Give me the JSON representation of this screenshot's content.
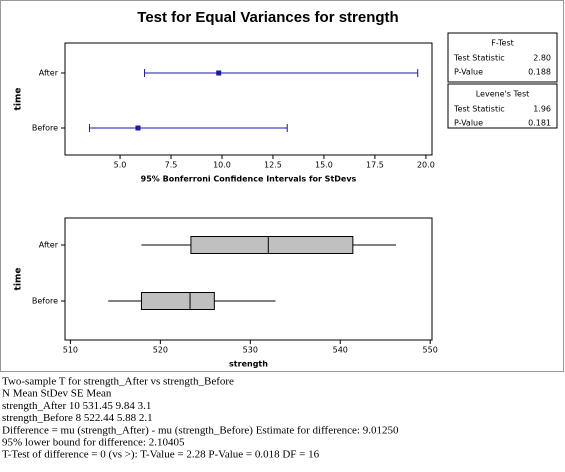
{
  "title": "Test for Equal Variances for strength",
  "chart_data": [
    {
      "type": "interval",
      "categories": [
        "After",
        "Before"
      ],
      "lower": [
        6.2,
        3.5
      ],
      "values": [
        9.84,
        5.88
      ],
      "upper": [
        19.6,
        13.2
      ],
      "color": "#1a1aa6",
      "xlim": [
        2.3,
        20.3
      ],
      "xticks": [
        {
          "value": 5,
          "label": "5.0"
        },
        {
          "value": 7.5,
          "label": "7.5"
        },
        {
          "value": 10,
          "label": "10.0"
        },
        {
          "value": 12.5,
          "label": "12.5"
        },
        {
          "value": 15,
          "label": "15.0"
        },
        {
          "value": 17.5,
          "label": "17.5"
        },
        {
          "value": 20,
          "label": "20.0"
        }
      ],
      "xlabel": "95% Bonferroni Confidence Intervals for StDevs",
      "ylabel": "time"
    },
    {
      "type": "box",
      "categories": [
        "After",
        "Before"
      ],
      "whisker_low": [
        517.9,
        514.2
      ],
      "q1": [
        523.4,
        517.9
      ],
      "median": [
        532.0,
        523.3
      ],
      "q3": [
        541.4,
        526.0
      ],
      "whisker_high": [
        546.2,
        532.8
      ],
      "color": "#c0c0c0",
      "xlim": [
        509.4,
        550.2
      ],
      "xticks": [
        510,
        520,
        530,
        540,
        550
      ],
      "xlabel": "strength",
      "ylabel": "time"
    }
  ],
  "tests": [
    {
      "title": "F-Test",
      "rows": [
        [
          "Test Statistic",
          "2.80"
        ],
        [
          "P-Value",
          "0.188"
        ]
      ]
    },
    {
      "title": "Levene's Test",
      "rows": [
        [
          "Test Statistic",
          "1.96"
        ],
        [
          "P-Value",
          "0.181"
        ]
      ]
    }
  ],
  "output_lines": [
    "Two-sample T for strength_After vs strength_Before",
    "N Mean StDev SE Mean",
    "strength_After 10 531.45 9.84 3.1",
    "strength_Before 8 522.44 5.88 2.1",
    "Difference = mu (strength_After) - mu (strength_Before) Estimate for difference: 9.01250",
    "95% lower bound for difference: 2.10405",
    "T-Test of difference = 0 (vs >): T-Value = 2.28 P-Value = 0.018 DF = 16"
  ]
}
